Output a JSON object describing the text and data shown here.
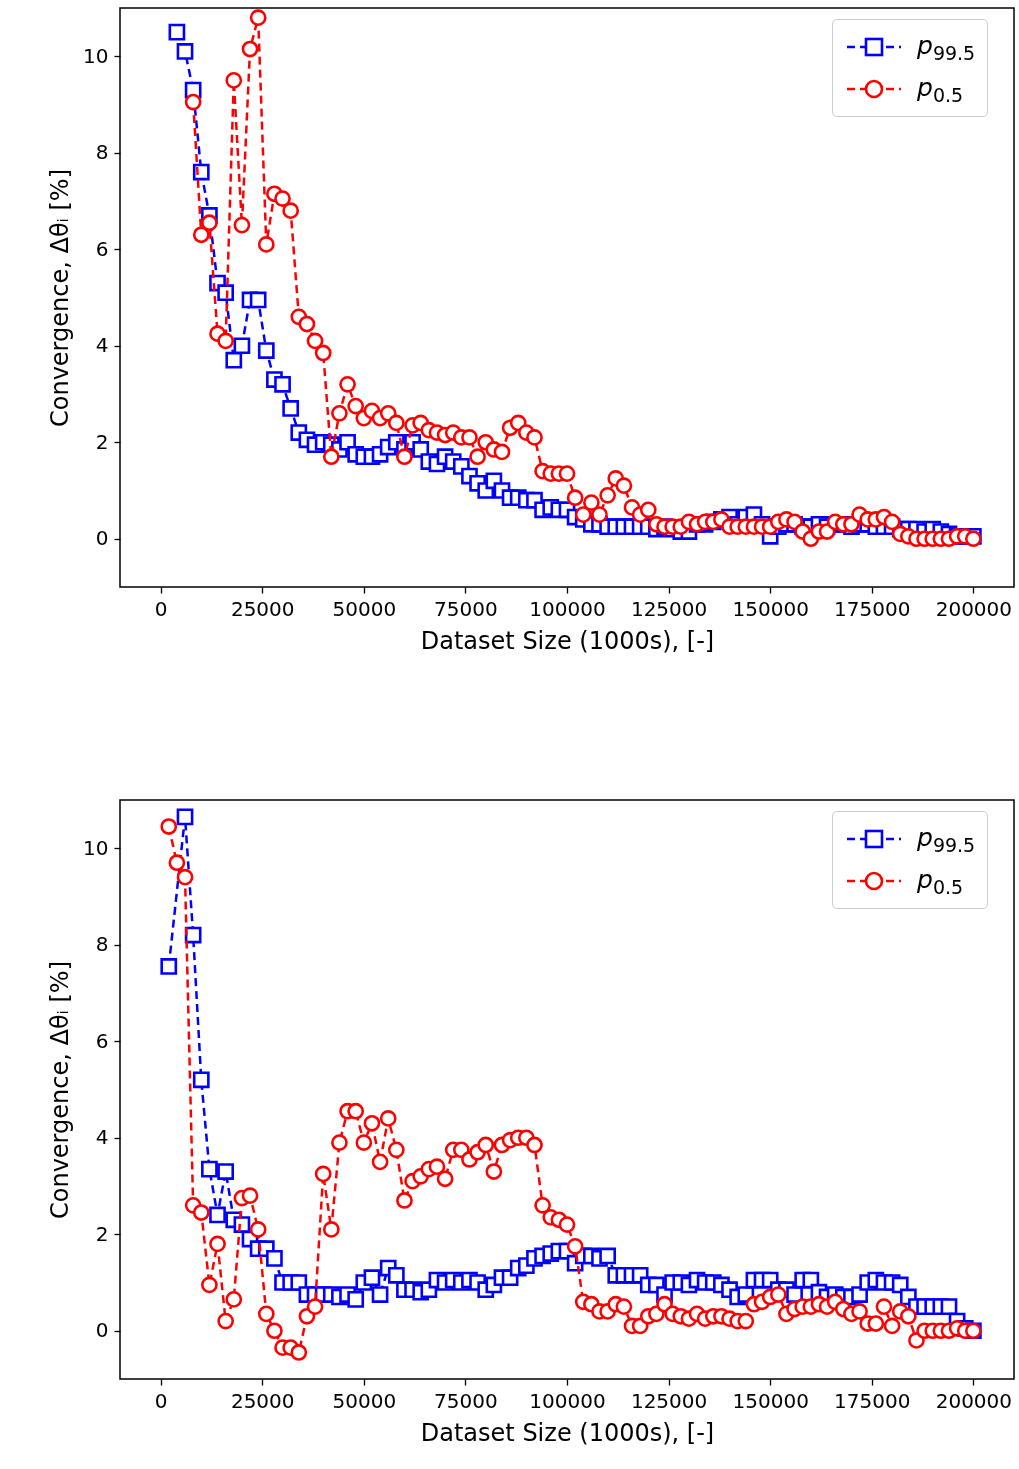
{
  "chart_data": [
    {
      "type": "line",
      "xlabel": "Dataset Size (1000s), [-]",
      "ylabel": "Convergence, Δθᵢ [%]",
      "xlim": [
        -10000,
        210000
      ],
      "ylim": [
        -1,
        11
      ],
      "xticks": [
        0,
        25000,
        50000,
        75000,
        100000,
        125000,
        150000,
        175000,
        200000
      ],
      "yticks": [
        0,
        2,
        4,
        6,
        8,
        10
      ],
      "legend": "top right",
      "line_style": "dashed",
      "x": [
        4000,
        6000,
        8000,
        10000,
        12000,
        14000,
        16000,
        18000,
        20000,
        22000,
        24000,
        26000,
        28000,
        30000,
        32000,
        34000,
        36000,
        38000,
        40000,
        42000,
        44000,
        46000,
        48000,
        50000,
        52000,
        54000,
        56000,
        58000,
        60000,
        62000,
        64000,
        66000,
        68000,
        70000,
        72000,
        74000,
        76000,
        78000,
        80000,
        82000,
        84000,
        86000,
        88000,
        90000,
        92000,
        94000,
        96000,
        98000,
        100000,
        102000,
        104000,
        106000,
        108000,
        110000,
        112000,
        114000,
        116000,
        118000,
        120000,
        122000,
        124000,
        126000,
        128000,
        130000,
        132000,
        134000,
        136000,
        138000,
        140000,
        142000,
        144000,
        146000,
        148000,
        150000,
        152000,
        154000,
        156000,
        158000,
        160000,
        162000,
        164000,
        166000,
        168000,
        170000,
        172000,
        174000,
        176000,
        178000,
        180000,
        182000,
        184000,
        186000,
        188000,
        190000,
        192000,
        194000,
        196000,
        198000,
        200000
      ],
      "series": [
        {
          "name": "p$_{99.5}$",
          "color": "#0000ff",
          "marker": "square",
          "values": [
            10.5,
            10.1,
            9.3,
            7.6,
            6.7,
            5.3,
            5.1,
            3.7,
            4.0,
            4.95,
            4.95,
            3.9,
            3.3,
            3.2,
            2.7,
            2.2,
            2.05,
            1.95,
            2.0,
            1.95,
            1.85,
            2.0,
            1.75,
            1.7,
            1.7,
            1.75,
            1.9,
            2.0,
            1.85,
            2.0,
            1.85,
            1.6,
            1.55,
            1.7,
            1.6,
            1.5,
            1.3,
            1.15,
            1.0,
            1.2,
            1.0,
            0.85,
            0.85,
            0.8,
            0.8,
            0.6,
            0.65,
            0.6,
            0.6,
            0.45,
            0.4,
            0.3,
            0.3,
            0.25,
            0.25,
            0.25,
            0.25,
            0.25,
            0.25,
            0.2,
            0.25,
            0.2,
            0.15,
            0.15,
            0.3,
            0.3,
            0.35,
            0.4,
            0.45,
            0.3,
            0.45,
            0.5,
            0.3,
            0.05,
            0.25,
            0.3,
            0.3,
            0.25,
            0.25,
            0.3,
            0.25,
            0.3,
            0.3,
            0.25,
            0.3,
            0.3,
            0.25,
            0.25,
            0.25,
            0.2,
            0.2,
            0.2,
            0.15,
            0.2,
            0.15,
            0.1,
            0.05,
            0.05,
            0.05
          ]
        },
        {
          "name": "p$_{0.5}$",
          "color": "#ff0000",
          "marker": "circle",
          "values": [
            null,
            null,
            9.05,
            6.3,
            6.55,
            4.25,
            4.1,
            9.5,
            6.5,
            10.15,
            10.8,
            6.1,
            7.15,
            7.05,
            6.8,
            4.6,
            4.45,
            4.1,
            3.85,
            1.7,
            2.6,
            3.2,
            2.75,
            2.5,
            2.65,
            2.5,
            2.6,
            2.4,
            1.7,
            2.35,
            2.4,
            2.25,
            2.2,
            2.15,
            2.2,
            2.1,
            2.1,
            1.7,
            2.0,
            1.85,
            1.8,
            2.3,
            2.4,
            2.2,
            2.1,
            1.4,
            1.35,
            1.35,
            1.35,
            0.85,
            0.5,
            0.75,
            0.5,
            0.9,
            1.25,
            1.1,
            0.65,
            0.5,
            0.6,
            0.3,
            0.25,
            0.25,
            0.25,
            0.35,
            0.3,
            0.35,
            0.35,
            0.4,
            0.25,
            0.25,
            0.25,
            0.25,
            0.25,
            0.25,
            0.35,
            0.4,
            0.35,
            0.15,
            0.0,
            0.15,
            0.15,
            0.35,
            0.3,
            0.3,
            0.5,
            0.4,
            0.4,
            0.45,
            0.35,
            0.1,
            0.05,
            0.0,
            0.0,
            0.0,
            0.0,
            0.0,
            0.05,
            0.05,
            0.0
          ]
        }
      ]
    },
    {
      "type": "line",
      "xlabel": "Dataset Size (1000s), [-]",
      "ylabel": "Convergence, Δθᵢ [%]",
      "xlim": [
        -10000,
        210000
      ],
      "ylim": [
        -1,
        11
      ],
      "xticks": [
        0,
        25000,
        50000,
        75000,
        100000,
        125000,
        150000,
        175000,
        200000
      ],
      "yticks": [
        0,
        2,
        4,
        6,
        8,
        10
      ],
      "legend": "top right",
      "line_style": "dashed",
      "x": [
        2000,
        4000,
        6000,
        8000,
        10000,
        12000,
        14000,
        16000,
        18000,
        20000,
        22000,
        24000,
        26000,
        28000,
        30000,
        32000,
        34000,
        36000,
        38000,
        40000,
        42000,
        44000,
        46000,
        48000,
        50000,
        52000,
        54000,
        56000,
        58000,
        60000,
        62000,
        64000,
        66000,
        68000,
        70000,
        72000,
        74000,
        76000,
        78000,
        80000,
        82000,
        84000,
        86000,
        88000,
        90000,
        92000,
        94000,
        96000,
        98000,
        100000,
        102000,
        104000,
        106000,
        108000,
        110000,
        112000,
        114000,
        116000,
        118000,
        120000,
        122000,
        124000,
        126000,
        128000,
        130000,
        132000,
        134000,
        136000,
        138000,
        140000,
        142000,
        144000,
        146000,
        148000,
        150000,
        152000,
        154000,
        156000,
        158000,
        160000,
        162000,
        164000,
        166000,
        168000,
        170000,
        172000,
        174000,
        176000,
        178000,
        180000,
        182000,
        184000,
        186000,
        188000,
        190000,
        192000,
        194000,
        196000,
        198000,
        200000
      ],
      "series": [
        {
          "name": "p$_{99.5}$",
          "color": "#0000ff",
          "marker": "square",
          "values": [
            7.55,
            null,
            10.65,
            8.2,
            5.2,
            3.35,
            2.4,
            3.3,
            2.3,
            2.2,
            1.9,
            1.7,
            1.7,
            1.5,
            1.0,
            1.0,
            1.0,
            0.75,
            0.75,
            0.75,
            0.75,
            0.7,
            0.75,
            0.65,
            1.0,
            1.1,
            0.75,
            1.3,
            1.15,
            0.85,
            0.85,
            0.8,
            0.85,
            1.05,
            1.0,
            1.05,
            1.0,
            1.05,
            1.0,
            0.85,
            0.95,
            1.1,
            1.1,
            1.3,
            1.35,
            1.5,
            1.55,
            1.6,
            1.65,
            1.65,
            1.4,
            1.55,
            1.55,
            1.5,
            1.55,
            1.15,
            1.15,
            1.15,
            1.15,
            0.95,
            0.95,
            0.75,
            1.0,
            1.0,
            0.95,
            1.05,
            1.0,
            1.0,
            0.95,
            0.85,
            0.7,
            0.75,
            1.05,
            1.05,
            1.05,
            0.85,
            0.85,
            0.75,
            1.05,
            1.05,
            0.8,
            0.7,
            0.75,
            0.7,
            0.7,
            0.75,
            1.0,
            1.05,
            1.0,
            1.0,
            0.95,
            0.7,
            0.5,
            0.5,
            0.5,
            0.5,
            0.5,
            0.2,
            0.05,
            0.0
          ]
        },
        {
          "name": "p$_{0.5}$",
          "color": "#ff0000",
          "marker": "circle",
          "values": [
            10.45,
            9.7,
            9.4,
            2.6,
            2.45,
            0.95,
            1.8,
            0.2,
            0.65,
            2.75,
            2.8,
            2.1,
            0.35,
            0.0,
            -0.35,
            -0.35,
            -0.45,
            0.3,
            0.5,
            3.25,
            2.1,
            3.9,
            4.55,
            4.55,
            3.9,
            4.3,
            3.5,
            4.4,
            3.75,
            2.7,
            3.1,
            3.2,
            3.35,
            3.4,
            3.15,
            3.75,
            3.75,
            3.55,
            3.7,
            3.85,
            3.3,
            3.85,
            3.95,
            4.0,
            4.0,
            3.85,
            2.6,
            2.35,
            2.3,
            2.2,
            1.75,
            0.6,
            0.55,
            0.4,
            0.4,
            0.55,
            0.5,
            0.1,
            0.1,
            0.3,
            0.35,
            0.55,
            0.35,
            0.3,
            0.25,
            0.35,
            0.25,
            0.3,
            0.3,
            0.25,
            0.2,
            0.2,
            0.55,
            0.6,
            0.7,
            0.75,
            0.35,
            0.45,
            0.5,
            0.5,
            0.55,
            0.5,
            0.6,
            0.45,
            0.35,
            0.4,
            0.15,
            0.15,
            0.5,
            0.1,
            0.4,
            0.3,
            -0.2,
            0.0,
            0.0,
            0.0,
            0.0,
            0.05,
            0.0,
            0.0
          ]
        }
      ]
    }
  ]
}
